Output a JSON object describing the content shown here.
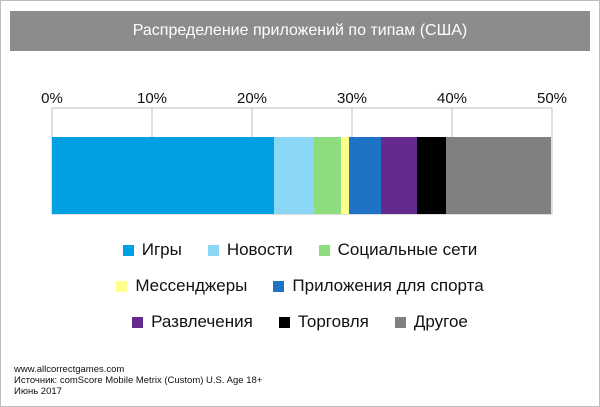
{
  "title": "Распределение приложений по типам (США)",
  "chart_data": {
    "type": "bar",
    "orientation": "horizontal-stacked",
    "xlim": [
      0,
      50
    ],
    "x_ticks": [
      "0%",
      "10%",
      "20%",
      "30%",
      "40%",
      "50%"
    ],
    "grid": true,
    "legend_position": "bottom",
    "series": [
      {
        "name": "Игры",
        "value": 22.2,
        "color": "#00a0e3"
      },
      {
        "name": "Новости",
        "value": 4.0,
        "color": "#8ad8f5"
      },
      {
        "name": "Социальные сети",
        "value": 2.7,
        "color": "#8ddd7e"
      },
      {
        "name": "Мессенджеры",
        "value": 0.8,
        "color": "#ffff8c"
      },
      {
        "name": "Приложения для спорта",
        "value": 3.2,
        "color": "#1f73c7"
      },
      {
        "name": "Развлечения",
        "value": 3.6,
        "color": "#642a8f"
      },
      {
        "name": "Торговля",
        "value": 2.9,
        "color": "#000000"
      },
      {
        "name": "Другое",
        "value": 10.5,
        "color": "#808080"
      }
    ]
  },
  "legend_rows": [
    [
      0,
      1,
      2
    ],
    [
      3,
      4
    ],
    [
      5,
      6,
      7
    ]
  ],
  "footer": {
    "line1": "www.allcorrectgames.com",
    "line2": "Источник: comScore Mobile Metrix (Custom) U.S. Age 18+",
    "line3": "Июнь 2017"
  }
}
